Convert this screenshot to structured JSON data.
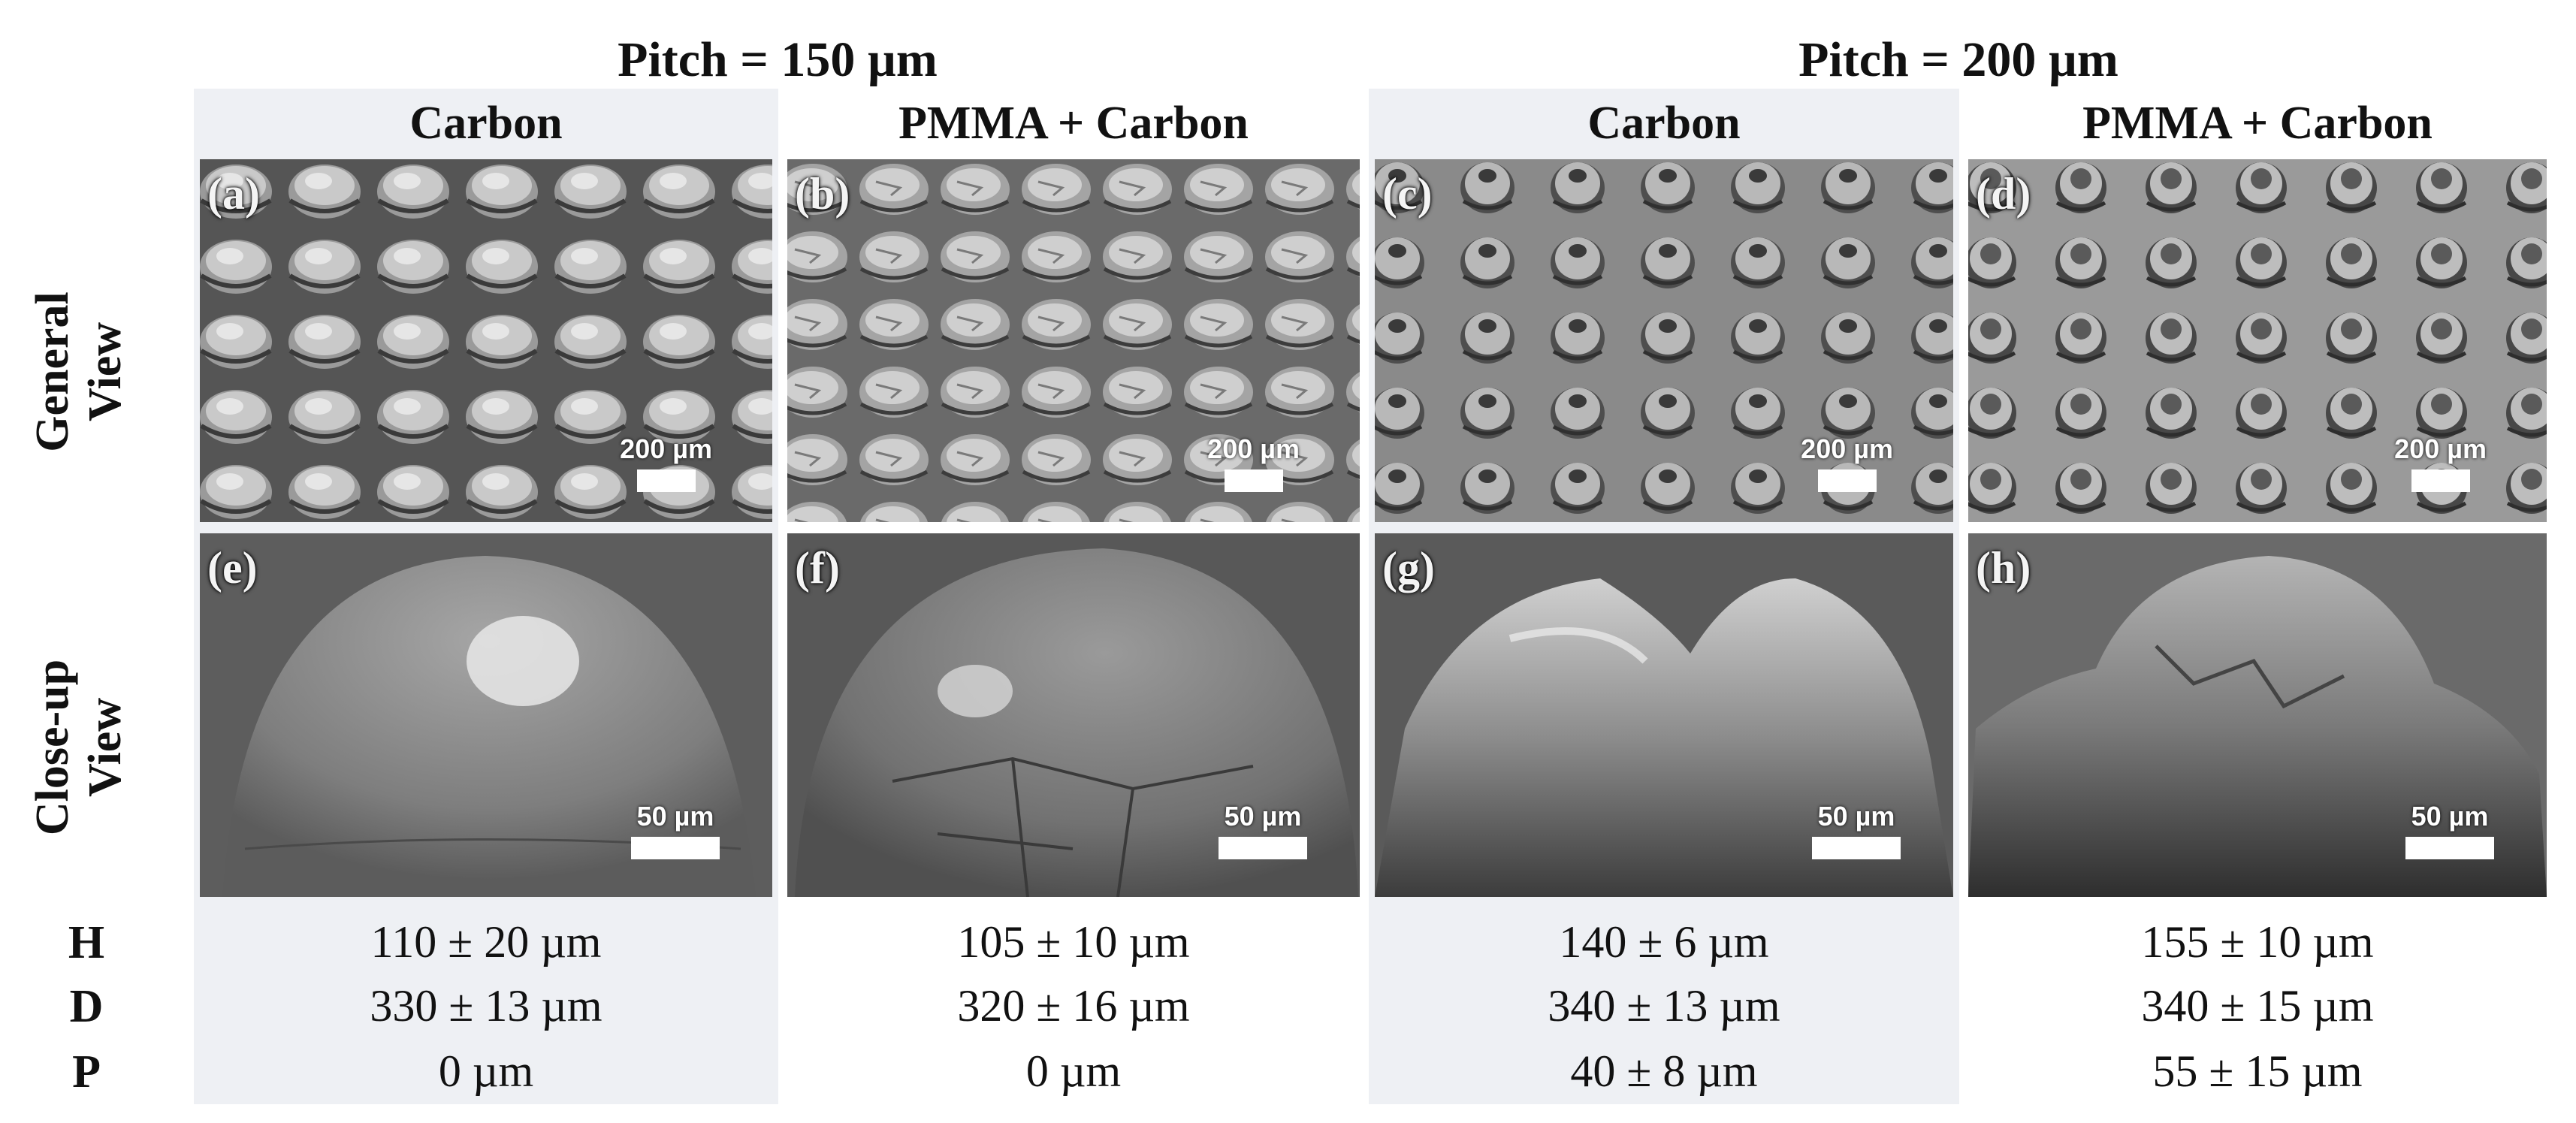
{
  "pitch_headers": [
    "Pitch = 150 µm",
    "Pitch = 200 µm"
  ],
  "columns": [
    "Carbon",
    "PMMA + Carbon",
    "Carbon",
    "PMMA + Carbon"
  ],
  "rows": {
    "general": [
      "General",
      "View"
    ],
    "closeup": [
      "Close-up",
      "View"
    ]
  },
  "panels": {
    "general": [
      {
        "label": "(a)",
        "scale": "200 µm"
      },
      {
        "label": "(b)",
        "scale": "200 µm"
      },
      {
        "label": "(c)",
        "scale": "200 µm"
      },
      {
        "label": "(d)",
        "scale": "200 µm"
      }
    ],
    "closeup": [
      {
        "label": "(e)",
        "scale": "50 µm"
      },
      {
        "label": "(f)",
        "scale": "50 µm"
      },
      {
        "label": "(g)",
        "scale": "50 µm"
      },
      {
        "label": "(h)",
        "scale": "50 µm"
      }
    ]
  },
  "measurements": {
    "labels": [
      "H",
      "D",
      "P"
    ],
    "values": [
      [
        "110 ± 20 µm",
        "105 ± 10 µm",
        "140 ± 6 µm",
        "155 ± 10 µm"
      ],
      [
        "330 ± 13 µm",
        "320 ± 16 µm",
        "340 ± 13 µm",
        "340 ± 15 µm"
      ],
      [
        "0 µm",
        "0 µm",
        "40 ± 8 µm",
        "55 ± 15 µm"
      ]
    ]
  }
}
